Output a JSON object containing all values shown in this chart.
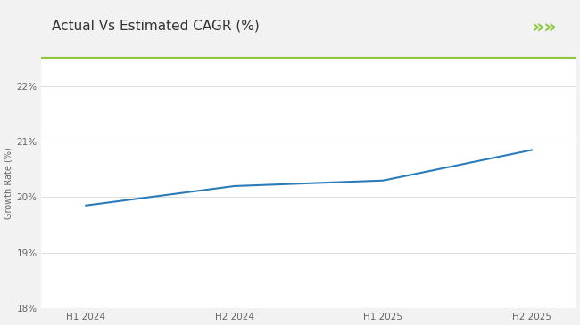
{
  "title": "Actual Vs Estimated CAGR (%)",
  "title_fontsize": 11,
  "ylabel": "Growth Rate (%)",
  "ylabel_fontsize": 7,
  "x_labels": [
    "H1 2024",
    "H2 2024",
    "H1 2025",
    "H2 2025"
  ],
  "x_values": [
    0,
    1,
    2,
    3
  ],
  "y_values": [
    19.85,
    20.2,
    20.3,
    20.85
  ],
  "line_color": "#2b7bb9",
  "line_width": 1.5,
  "ylim": [
    18,
    22.5
  ],
  "yticks": [
    18,
    19,
    20,
    21,
    22
  ],
  "ytick_labels": [
    "18%",
    "19%",
    "20%",
    "21%",
    "22%"
  ],
  "bg_color": "#f2f2f2",
  "plot_bg_color": "#ffffff",
  "header_bg_color": "#ffffff",
  "green_line_color": "#8dc63f",
  "green_arrow_color": "#8dc63f",
  "title_color": "#333333",
  "tick_color": "#666666",
  "grid_color": "#dddddd"
}
